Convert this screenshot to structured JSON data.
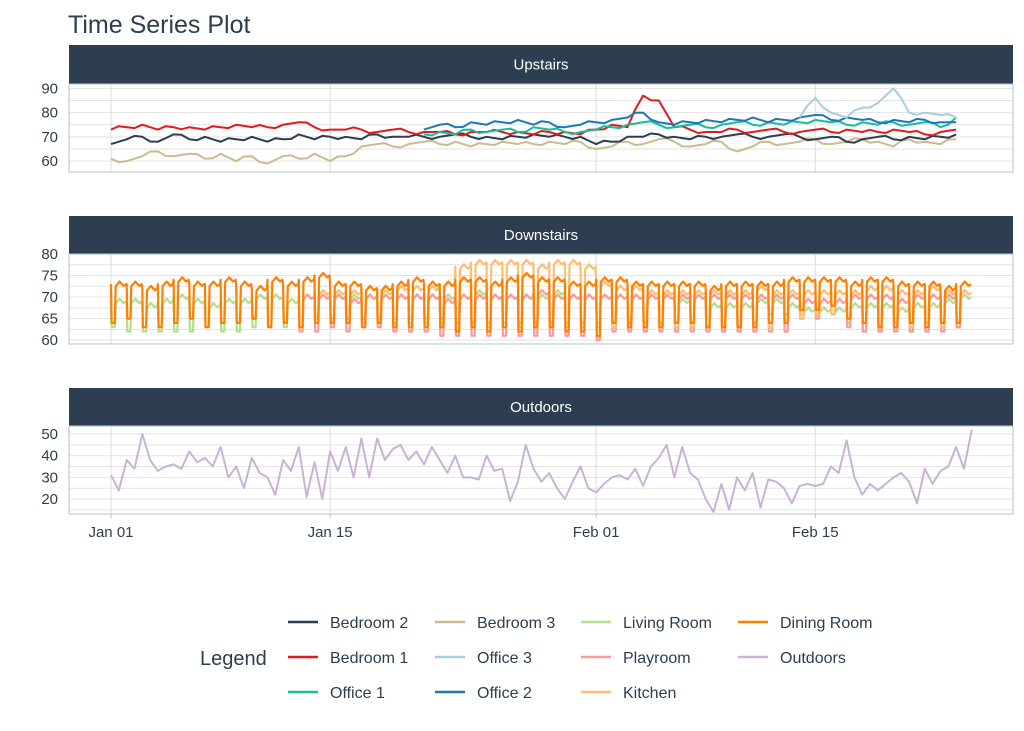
{
  "chart_data": {
    "type": "line",
    "title": "Time Series Plot",
    "x_ticks": [
      "Jan 01",
      "Jan 15",
      "Feb 01",
      "Feb 15"
    ],
    "grid": true,
    "legend": {
      "title": "Legend",
      "placement": "bottom"
    },
    "panels": [
      {
        "name": "Upstairs",
        "ylim": [
          55.5,
          91.8
        ],
        "y_ticks": [
          60,
          70,
          80,
          90
        ]
      },
      {
        "name": "Downstairs",
        "ylim": [
          59.1,
          80
        ],
        "y_ticks": [
          60,
          65,
          70,
          75,
          80
        ]
      },
      {
        "name": "Outdoors",
        "ylim": [
          13.1,
          53.7
        ],
        "y_ticks": [
          20,
          30,
          40,
          50
        ]
      }
    ],
    "series": [
      {
        "name": "Bedroom 3",
        "color": "#cdbb8e",
        "panel": "Upstairs",
        "start": "Jan 01",
        "interval": "1 day",
        "values": [
          61,
          60,
          62,
          64,
          62,
          63,
          61,
          63,
          60,
          62,
          59,
          62,
          61,
          63,
          60,
          62,
          66,
          67,
          66,
          67,
          68,
          67,
          68,
          66,
          67,
          68,
          67,
          67,
          68,
          67,
          68,
          65,
          66,
          68,
          67,
          69,
          68,
          66,
          67,
          68,
          64,
          66,
          68,
          67,
          68,
          69,
          67,
          68,
          69,
          68,
          66,
          69,
          68,
          67,
          69
        ]
      },
      {
        "name": "Bedroom 2",
        "color": "#2c3e50",
        "panel": "Upstairs",
        "start": "Jan 01",
        "interval": "1 day",
        "values": [
          67,
          69,
          70,
          68,
          71,
          69,
          70,
          68,
          69,
          70,
          68,
          69,
          71,
          69,
          70,
          70,
          69,
          71,
          70,
          70,
          70,
          70,
          71,
          70,
          70,
          69,
          70,
          71,
          70,
          70,
          70,
          67,
          68,
          70,
          70,
          71,
          70,
          69,
          70,
          70,
          71,
          70,
          70,
          71,
          70,
          69,
          70,
          68,
          69,
          70,
          69,
          70,
          69,
          70,
          71
        ]
      },
      {
        "name": "Bedroom 1",
        "color": "#e31a1c",
        "panel": "Upstairs",
        "start": "Jan 01",
        "interval": "1 day",
        "values": [
          73,
          74,
          75,
          73,
          74,
          74,
          73,
          74,
          75,
          74,
          74,
          75,
          76,
          74,
          73,
          73,
          73,
          72,
          73,
          72,
          72,
          72,
          71,
          72,
          72,
          72,
          72,
          71,
          72,
          72,
          71,
          73,
          75,
          74,
          87,
          85,
          74,
          73,
          72,
          72,
          73,
          72,
          73,
          72,
          72,
          73,
          72,
          73,
          72,
          72,
          73,
          72,
          71,
          72,
          73
        ]
      },
      {
        "name": "Office 1",
        "color": "#1abc9c",
        "panel": "Upstairs",
        "start": "Jan 21",
        "interval": "1 day",
        "values": [
          71,
          72,
          71,
          73,
          72,
          73,
          72,
          74,
          73,
          72,
          72,
          73,
          74,
          75,
          76,
          75,
          74,
          75,
          74,
          75,
          76,
          75,
          76,
          75,
          76,
          77,
          76,
          75,
          76,
          75,
          76,
          75,
          76,
          74,
          78
        ]
      },
      {
        "name": "Office 2",
        "color": "#1f78b4",
        "panel": "Upstairs",
        "start": "Jan 21",
        "interval": "1 day",
        "values": [
          73,
          75,
          74,
          76,
          75,
          76,
          77,
          75,
          76,
          74,
          75,
          76,
          77,
          78,
          80,
          76,
          75,
          76,
          77,
          76,
          77,
          78,
          76,
          77,
          78,
          79,
          77,
          78,
          77,
          76,
          77,
          76,
          77,
          76,
          76
        ]
      },
      {
        "name": "Office 3",
        "color": "#a6cee3",
        "panel": "Upstairs",
        "start": "Feb 14",
        "interval": "1 day",
        "values": [
          78,
          86,
          80,
          78,
          82,
          84,
          90,
          80,
          80,
          79,
          78
        ]
      },
      {
        "name": "Living Room",
        "color": "#b2df8a",
        "panel": "Downstairs",
        "start": "Jan 01",
        "interval": "1 day",
        "high": [
          69,
          69,
          68,
          69,
          70,
          69,
          68,
          69,
          69,
          70,
          70,
          69,
          70,
          71,
          70,
          70,
          70,
          71,
          70,
          70,
          70,
          70,
          70,
          71,
          70,
          70,
          70,
          70,
          71,
          70,
          70,
          70,
          70,
          70,
          70,
          70,
          69,
          70,
          68,
          68,
          68,
          69,
          69,
          68,
          67,
          67,
          67,
          68,
          68,
          68,
          67,
          68,
          68,
          69,
          70
        ],
        "low": [
          63,
          62,
          62,
          62,
          62,
          62,
          63,
          62,
          62,
          63,
          63,
          63,
          63,
          64,
          64,
          64,
          64,
          64,
          64,
          64,
          64,
          64,
          64,
          64,
          64,
          64,
          64,
          64,
          64,
          64,
          64,
          64,
          64,
          64,
          64,
          64,
          64,
          63,
          63,
          62,
          62,
          64,
          66,
          66,
          66,
          66,
          66,
          64,
          62,
          62,
          62,
          62,
          62,
          62,
          63
        ]
      },
      {
        "name": "Playroom",
        "color": "#fb9a99",
        "panel": "Downstairs",
        "start": "Jan 13",
        "interval": "1 day",
        "high": [
          70,
          70,
          70,
          69,
          70,
          70,
          70,
          70,
          70,
          69,
          70,
          70,
          70,
          70,
          70,
          71,
          70,
          70,
          70,
          70,
          70,
          70,
          70,
          70,
          70,
          70,
          70,
          70,
          70,
          70,
          70,
          70,
          69,
          69,
          69,
          70,
          70,
          70,
          69,
          70,
          70,
          70,
          71
        ],
        "low": [
          62,
          62,
          63,
          62,
          63,
          63,
          62,
          62,
          62,
          61,
          61,
          61,
          61,
          61,
          61,
          61,
          61,
          61,
          61,
          60,
          62,
          62,
          62,
          62,
          62,
          62,
          62,
          62,
          62,
          62,
          62,
          62,
          65,
          65,
          66,
          63,
          62,
          62,
          62,
          62,
          62,
          62,
          63
        ]
      },
      {
        "name": "Kitchen",
        "color": "#fdbf6f",
        "panel": "Downstairs",
        "start": "Jan 14",
        "interval": "1 day",
        "high": [
          71,
          71,
          71,
          72,
          72,
          72,
          72,
          72,
          73,
          77,
          78,
          78,
          78,
          78,
          77,
          78,
          78,
          77,
          73,
          72,
          72,
          71,
          71,
          71,
          71,
          71,
          71,
          71,
          72,
          71,
          71,
          71,
          71,
          71,
          71,
          72,
          72,
          71,
          71,
          72,
          71,
          71
        ],
        "low": [
          65,
          65,
          65,
          65,
          65,
          65,
          65,
          65,
          65,
          64,
          63,
          63,
          63,
          63,
          63,
          63,
          63,
          63,
          63,
          63,
          63,
          63,
          63,
          63,
          63,
          63,
          63,
          63,
          63,
          63,
          64,
          65,
          66,
          66,
          65,
          64,
          63,
          64,
          63,
          64,
          63,
          64
        ]
      },
      {
        "name": "Dining Room",
        "color": "#ff7f00",
        "panel": "Downstairs",
        "start": "Jan 01",
        "interval": "1 day",
        "high": [
          73,
          73,
          72,
          73,
          74,
          73,
          73,
          74,
          73,
          72,
          74,
          73,
          74,
          75,
          73,
          73,
          72,
          72,
          73,
          74,
          73,
          73,
          74,
          74,
          73,
          74,
          75,
          74,
          74,
          73,
          73,
          74,
          74,
          73,
          73,
          73,
          73,
          73,
          72,
          73,
          73,
          73,
          73,
          74,
          74,
          74,
          74,
          73,
          74,
          74,
          73,
          73,
          73,
          72,
          73
        ],
        "low": [
          64,
          65,
          63,
          63,
          64,
          65,
          63,
          64,
          64,
          65,
          63,
          64,
          63,
          64,
          64,
          64,
          63,
          64,
          63,
          63,
          63,
          63,
          62,
          63,
          62,
          63,
          62,
          63,
          63,
          62,
          62,
          61,
          64,
          63,
          63,
          63,
          64,
          64,
          63,
          63,
          63,
          63,
          64,
          64,
          67,
          67,
          68,
          65,
          64,
          63,
          63,
          64,
          63,
          64,
          64
        ]
      },
      {
        "name": "Outdoors",
        "color": "#cab2d6",
        "panel": "Outdoors",
        "start": "Jan 01",
        "interval": "12 hours",
        "values": [
          31,
          24,
          38,
          34,
          50,
          38,
          33,
          35,
          36,
          34,
          42,
          37,
          39,
          35,
          44,
          30,
          35,
          25,
          39,
          32,
          30,
          22,
          38,
          33,
          44,
          21,
          37,
          20,
          42,
          33,
          44,
          30,
          48,
          30,
          48,
          38,
          43,
          45,
          38,
          42,
          36,
          44,
          38,
          32,
          40,
          30,
          30,
          29,
          40,
          33,
          34,
          19,
          28,
          45,
          34,
          28,
          32,
          25,
          20,
          28,
          35,
          25,
          23,
          27,
          30,
          31,
          29,
          34,
          26,
          35,
          39,
          45,
          30,
          44,
          32,
          29,
          20,
          14,
          27,
          15,
          30,
          24,
          32,
          16,
          29,
          28,
          25,
          18,
          26,
          27,
          26,
          27,
          35,
          32,
          47,
          30,
          22,
          27,
          24,
          27,
          30,
          32,
          28,
          18,
          34,
          27,
          33,
          35,
          44,
          34,
          52
        ]
      }
    ]
  }
}
